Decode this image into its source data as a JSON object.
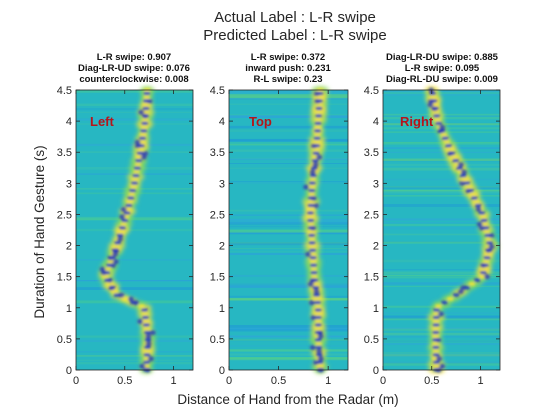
{
  "figure": {
    "title_line1": "Actual Label : L-R swipe",
    "title_line2": "Predicted Label : L-R swipe",
    "xlabel": "Distance of Hand from the Radar (m)",
    "ylabel": "Duration of Hand Gesture (s)"
  },
  "chart_data": [
    {
      "type": "heatmap",
      "panel_label": "Left",
      "predictions": [
        "L-R swipe: 0.907",
        "Diag-LR-UD swipe: 0.076",
        "counterclockwise: 0.008"
      ],
      "xlim": [
        0,
        1.2
      ],
      "ylim": [
        0,
        4.5
      ],
      "xticks": [
        0,
        0.5,
        1
      ],
      "yticks": [
        0,
        0.5,
        1,
        1.5,
        2,
        2.5,
        3,
        3.5,
        4,
        4.5
      ],
      "trace": [
        [
          0,
          0.72
        ],
        [
          0.5,
          0.74
        ],
        [
          1.0,
          0.7
        ],
        [
          1.2,
          0.42
        ],
        [
          1.5,
          0.3
        ],
        [
          2.0,
          0.42
        ],
        [
          2.5,
          0.52
        ],
        [
          3.0,
          0.6
        ],
        [
          3.5,
          0.66
        ],
        [
          4.0,
          0.71
        ],
        [
          4.5,
          0.73
        ]
      ]
    },
    {
      "type": "heatmap",
      "panel_label": "Top",
      "predictions": [
        "L-R swipe: 0.372",
        "inward push: 0.231",
        "R-L swipe: 0.23"
      ],
      "xlim": [
        0,
        1.2
      ],
      "ylim": [
        0,
        4.5
      ],
      "xticks": [
        0,
        0.5,
        1
      ],
      "yticks": [
        0,
        0.5,
        1,
        1.5,
        2,
        2.5,
        3,
        3.5,
        4,
        4.5
      ],
      "trace": [
        [
          0,
          0.92
        ],
        [
          0.5,
          0.9
        ],
        [
          1.0,
          0.9
        ],
        [
          1.5,
          0.86
        ],
        [
          2.0,
          0.84
        ],
        [
          2.5,
          0.82
        ],
        [
          3.0,
          0.84
        ],
        [
          3.5,
          0.88
        ],
        [
          4.0,
          0.9
        ],
        [
          4.5,
          0.92
        ]
      ]
    },
    {
      "type": "heatmap",
      "panel_label": "Right",
      "predictions": [
        "Diag-LR-DU swipe: 0.885",
        "L-R swipe: 0.095",
        "Diag-RL-DU swipe: 0.009"
      ],
      "xlim": [
        0,
        1.2
      ],
      "ylim": [
        0,
        4.5
      ],
      "xticks": [
        0,
        0.5,
        1
      ],
      "yticks": [
        0,
        0.5,
        1,
        1.5,
        2,
        2.5,
        3,
        3.5,
        4,
        4.5
      ],
      "trace": [
        [
          0,
          0.55
        ],
        [
          0.5,
          0.54
        ],
        [
          1.0,
          0.55
        ],
        [
          1.2,
          0.75
        ],
        [
          1.5,
          1.02
        ],
        [
          2.0,
          1.1
        ],
        [
          2.5,
          1.02
        ],
        [
          3.0,
          0.86
        ],
        [
          3.5,
          0.7
        ],
        [
          4.0,
          0.56
        ],
        [
          4.5,
          0.5
        ]
      ]
    }
  ]
}
